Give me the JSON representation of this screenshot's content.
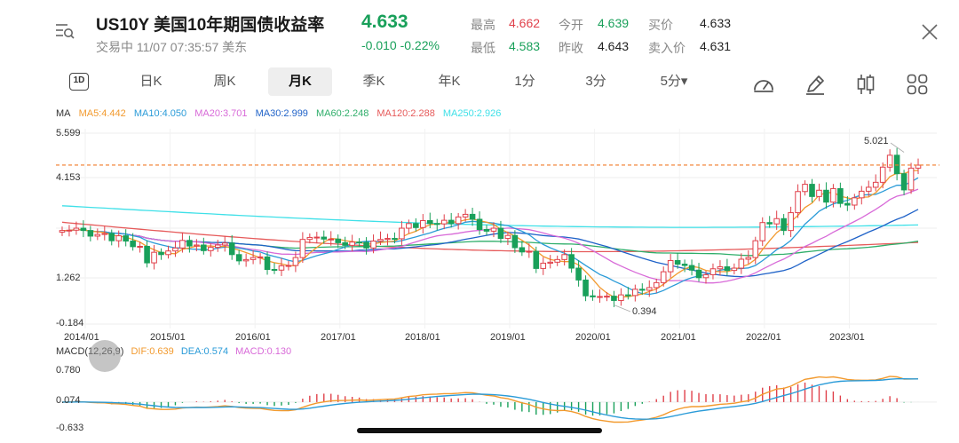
{
  "header": {
    "title": "US10Y  美国10年期国债收益率",
    "status_line": "交易中 11/07 07:35:57 美东",
    "price": "4.633",
    "change": "-0.010  -0.22%",
    "stats": [
      {
        "label": "最高",
        "value": "4.662",
        "color": "#e0404a"
      },
      {
        "label": "最低",
        "value": "4.583",
        "color": "#19a05a"
      },
      {
        "label": "今开",
        "value": "4.639",
        "color": "#19a05a"
      },
      {
        "label": "昨收",
        "value": "4.643",
        "color": "#222222"
      },
      {
        "label": "买价",
        "value": "4.633",
        "color": "#222222"
      },
      {
        "label": "卖入价",
        "value": "4.631",
        "color": "#222222"
      }
    ]
  },
  "tabs": {
    "d1": "1D",
    "items": [
      "日K",
      "周K",
      "月K",
      "季K",
      "年K",
      "1分",
      "3分",
      "5分▾"
    ],
    "active": "月K"
  },
  "icons": {
    "menu": "menu-search-icon",
    "close": "close-icon",
    "tools": [
      "speedometer-icon",
      "pen-icon",
      "candlestick-icon",
      "grid-icon"
    ]
  },
  "ma_legend": [
    {
      "text": "MA",
      "color": "#333333"
    },
    {
      "text": "MA5:4.442",
      "color": "#f29a2e"
    },
    {
      "text": "MA10:4.050",
      "color": "#2a9bd8"
    },
    {
      "text": "MA20:3.701",
      "color": "#d86ad8"
    },
    {
      "text": "MA30:2.999",
      "color": "#1f62c8"
    },
    {
      "text": "MA60:2.248",
      "color": "#2fae6a"
    },
    {
      "text": "MA120:2.288",
      "color": "#e65a5a"
    },
    {
      "text": "MA250:2.926",
      "color": "#3fe0e8"
    }
  ],
  "macd_legend": [
    {
      "text": "MACD(12,26,9)",
      "color": "#333333"
    },
    {
      "text": "DIF:0.639",
      "color": "#f29a2e"
    },
    {
      "text": "DEA:0.574",
      "color": "#2a9bd8"
    },
    {
      "text": "MACD:0.130",
      "color": "#d86ad8"
    }
  ],
  "chart_data": {
    "type": "candlestick",
    "y_ticks": [
      "5.599",
      "4.153",
      "1.262",
      "-0.184"
    ],
    "x_ticks": [
      "2014/01",
      "2015/01",
      "2016/01",
      "2017/01",
      "2018/01",
      "2019/01",
      "2020/01",
      "2021/01",
      "2022/01",
      "2023/01"
    ],
    "ylim": [
      -0.184,
      5.599
    ],
    "current_price_line": 4.633,
    "annotations": [
      {
        "text": "5.021",
        "value": 5.021,
        "date": "2023/10"
      },
      {
        "text": "0.394",
        "value": 0.394,
        "date": "2020/07"
      }
    ],
    "macd_y_ticks": [
      "0.780",
      "0.074",
      "-0.633"
    ],
    "macd_ylim": [
      -0.633,
      0.78
    ],
    "approx_monthly_close": [
      2.65,
      2.66,
      2.72,
      2.65,
      2.48,
      2.53,
      2.56,
      2.34,
      2.49,
      2.33,
      2.16,
      2.17,
      1.67,
      1.99,
      1.92,
      2.03,
      2.12,
      2.35,
      2.18,
      2.21,
      2.04,
      2.14,
      2.21,
      2.27,
      1.92,
      1.73,
      1.77,
      1.83,
      1.85,
      1.47,
      1.45,
      1.58,
      1.59,
      1.83,
      2.38,
      2.44,
      2.45,
      2.39,
      2.39,
      2.28,
      2.2,
      2.3,
      2.29,
      2.12,
      2.33,
      2.38,
      2.41,
      2.4,
      2.72,
      2.86,
      2.74,
      2.95,
      2.86,
      2.85,
      2.96,
      2.86,
      3.06,
      3.14,
      2.99,
      2.68,
      2.63,
      2.72,
      2.41,
      2.5,
      2.13,
      2.0,
      2.02,
      1.5,
      1.66,
      1.69,
      1.77,
      1.92,
      1.51,
      1.15,
      0.67,
      0.64,
      0.65,
      0.66,
      0.53,
      0.7,
      0.68,
      0.87,
      0.84,
      0.92,
      1.07,
      1.4,
      1.74,
      1.63,
      1.59,
      1.45,
      1.22,
      1.31,
      1.49,
      1.55,
      1.44,
      1.51,
      1.78,
      1.83,
      2.34,
      2.89,
      2.85,
      3.01,
      2.65,
      3.19,
      3.83,
      4.05,
      3.68,
      3.87,
      3.51,
      3.92,
      3.47,
      3.42,
      3.64,
      3.84,
      3.96,
      4.11,
      4.57,
      4.93,
      4.37,
      3.88,
      4.54,
      4.63
    ]
  }
}
